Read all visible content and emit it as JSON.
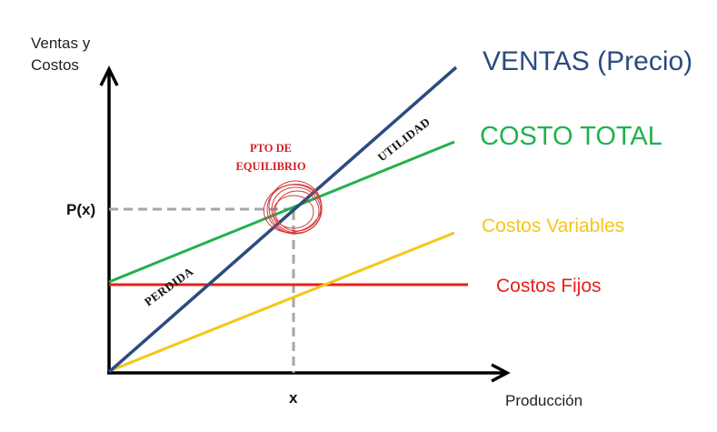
{
  "axes": {
    "y_label_line1": "Ventas y",
    "y_label_line2": "Costos",
    "x_label": "Producción",
    "x_tick": "x",
    "y_tick": "P(x)"
  },
  "lines": {
    "ventas": {
      "label": "VENTAS (Precio)",
      "color": "#2b4c7e"
    },
    "costo_total": {
      "label": "COSTO TOTAL",
      "color": "#22b14c"
    },
    "costos_variables": {
      "label": "Costos Variables",
      "color": "#f5c518"
    },
    "costos_fijos": {
      "label": "Costos Fijos",
      "color": "#e8201c"
    }
  },
  "annotations": {
    "equilibrio_line1": "PTO DE",
    "equilibrio_line2": "EQUILIBRIO",
    "utilidad": "UTILIDAD",
    "perdida": "PERDIDA"
  }
}
